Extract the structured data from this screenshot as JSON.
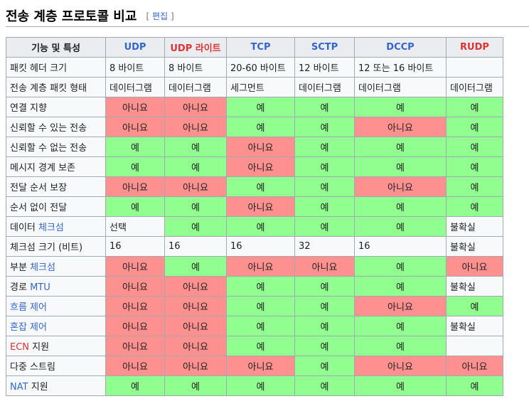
{
  "heading": "전송 계층 프로토콜 비교",
  "edit": {
    "open": "[",
    "label": "편집",
    "close": "]"
  },
  "columns": [
    {
      "label": "기능 및 특성",
      "style": "feat"
    },
    {
      "label": "UDP",
      "style": "blue"
    },
    {
      "label": "UDP 라이트",
      "style": "red"
    },
    {
      "label": "TCP",
      "style": "blue"
    },
    {
      "label": "SCTP",
      "style": "blue"
    },
    {
      "label": "DCCP",
      "style": "blue"
    },
    {
      "label": "RUDP",
      "style": "red"
    }
  ],
  "rows": [
    {
      "label": [
        {
          "t": "패킷 헤더 크기"
        }
      ],
      "cells": [
        {
          "v": "8 바이트",
          "s": "plain"
        },
        {
          "v": "8 바이트",
          "s": "plain"
        },
        {
          "v": "20-60 바이트",
          "s": "plain"
        },
        {
          "v": "12 바이트",
          "s": "plain"
        },
        {
          "v": "12 또는 16 바이트",
          "s": "plain"
        },
        {
          "v": "",
          "s": "plain"
        }
      ]
    },
    {
      "label": [
        {
          "t": "전송 계층 패킷 형태"
        }
      ],
      "cells": [
        {
          "v": "데이터그램",
          "s": "plain"
        },
        {
          "v": "데이터그램",
          "s": "plain"
        },
        {
          "v": "세그먼트",
          "s": "plain"
        },
        {
          "v": "데이터그램",
          "s": "plain"
        },
        {
          "v": "데이터그램",
          "s": "plain"
        },
        {
          "v": "데이터그램",
          "s": "plain"
        }
      ]
    },
    {
      "label": [
        {
          "t": "연결 지향"
        }
      ],
      "cells": [
        {
          "v": "아니요",
          "s": "no"
        },
        {
          "v": "아니요",
          "s": "no"
        },
        {
          "v": "예",
          "s": "yes"
        },
        {
          "v": "예",
          "s": "yes"
        },
        {
          "v": "예",
          "s": "yes"
        },
        {
          "v": "예",
          "s": "yes"
        }
      ]
    },
    {
      "label": [
        {
          "t": "신뢰할 수 있는 전송"
        }
      ],
      "cells": [
        {
          "v": "아니요",
          "s": "no"
        },
        {
          "v": "아니요",
          "s": "no"
        },
        {
          "v": "예",
          "s": "yes"
        },
        {
          "v": "예",
          "s": "yes"
        },
        {
          "v": "아니요",
          "s": "no"
        },
        {
          "v": "예",
          "s": "yes"
        }
      ]
    },
    {
      "label": [
        {
          "t": "신뢰할 수 없는 전송"
        }
      ],
      "cells": [
        {
          "v": "예",
          "s": "yes"
        },
        {
          "v": "예",
          "s": "yes"
        },
        {
          "v": "아니요",
          "s": "no"
        },
        {
          "v": "예",
          "s": "yes"
        },
        {
          "v": "예",
          "s": "yes"
        },
        {
          "v": "예",
          "s": "yes"
        }
      ]
    },
    {
      "label": [
        {
          "t": "메시지 경계 보존"
        }
      ],
      "cells": [
        {
          "v": "예",
          "s": "yes"
        },
        {
          "v": "예",
          "s": "yes"
        },
        {
          "v": "아니요",
          "s": "no"
        },
        {
          "v": "예",
          "s": "yes"
        },
        {
          "v": "예",
          "s": "yes"
        },
        {
          "v": "예",
          "s": "yes"
        }
      ]
    },
    {
      "label": [
        {
          "t": "전달 순서 보장"
        }
      ],
      "cells": [
        {
          "v": "아니요",
          "s": "no"
        },
        {
          "v": "아니요",
          "s": "no"
        },
        {
          "v": "예",
          "s": "yes"
        },
        {
          "v": "예",
          "s": "yes"
        },
        {
          "v": "아니요",
          "s": "no"
        },
        {
          "v": "예",
          "s": "yes"
        }
      ]
    },
    {
      "label": [
        {
          "t": "순서 없이 전달"
        }
      ],
      "cells": [
        {
          "v": "예",
          "s": "yes"
        },
        {
          "v": "예",
          "s": "yes"
        },
        {
          "v": "아니요",
          "s": "no"
        },
        {
          "v": "예",
          "s": "yes"
        },
        {
          "v": "예",
          "s": "yes"
        },
        {
          "v": "예",
          "s": "yes"
        }
      ]
    },
    {
      "label": [
        {
          "t": "데이터 "
        },
        {
          "t": "체크섬",
          "link": "lk"
        }
      ],
      "cells": [
        {
          "v": "선택",
          "s": "plain"
        },
        {
          "v": "예",
          "s": "yes"
        },
        {
          "v": "예",
          "s": "yes"
        },
        {
          "v": "예",
          "s": "yes"
        },
        {
          "v": "예",
          "s": "yes"
        },
        {
          "v": "불확실",
          "s": "plain"
        }
      ]
    },
    {
      "label": [
        {
          "t": "체크섬 크기 (비트)"
        }
      ],
      "cells": [
        {
          "v": "16",
          "s": "plain"
        },
        {
          "v": "16",
          "s": "plain"
        },
        {
          "v": "16",
          "s": "plain"
        },
        {
          "v": "32",
          "s": "plain"
        },
        {
          "v": "16",
          "s": "plain"
        },
        {
          "v": "불확실",
          "s": "plain"
        }
      ]
    },
    {
      "label": [
        {
          "t": "부분 "
        },
        {
          "t": "체크섬",
          "link": "lk"
        }
      ],
      "cells": [
        {
          "v": "아니요",
          "s": "no"
        },
        {
          "v": "예",
          "s": "yes"
        },
        {
          "v": "아니요",
          "s": "no"
        },
        {
          "v": "아니요",
          "s": "no"
        },
        {
          "v": "예",
          "s": "yes"
        },
        {
          "v": "아니요",
          "s": "no"
        }
      ]
    },
    {
      "label": [
        {
          "t": "경로 "
        },
        {
          "t": "MTU",
          "link": "lk"
        }
      ],
      "cells": [
        {
          "v": "아니요",
          "s": "no"
        },
        {
          "v": "아니요",
          "s": "no"
        },
        {
          "v": "예",
          "s": "yes"
        },
        {
          "v": "예",
          "s": "yes"
        },
        {
          "v": "예",
          "s": "yes"
        },
        {
          "v": "불확실",
          "s": "plain"
        }
      ]
    },
    {
      "label": [
        {
          "t": "흐름 제어",
          "link": "lk"
        }
      ],
      "cells": [
        {
          "v": "아니요",
          "s": "no"
        },
        {
          "v": "아니요",
          "s": "no"
        },
        {
          "v": "예",
          "s": "yes"
        },
        {
          "v": "예",
          "s": "yes"
        },
        {
          "v": "아니요",
          "s": "no"
        },
        {
          "v": "예",
          "s": "yes"
        }
      ]
    },
    {
      "label": [
        {
          "t": "혼잡 제어",
          "link": "lk"
        }
      ],
      "cells": [
        {
          "v": "아니요",
          "s": "no"
        },
        {
          "v": "아니요",
          "s": "no"
        },
        {
          "v": "예",
          "s": "yes"
        },
        {
          "v": "예",
          "s": "yes"
        },
        {
          "v": "예",
          "s": "yes"
        },
        {
          "v": "불확실",
          "s": "plain"
        }
      ]
    },
    {
      "label": [
        {
          "t": "ECN",
          "link": "lk-red"
        },
        {
          "t": " 지원"
        }
      ],
      "cells": [
        {
          "v": "아니요",
          "s": "no"
        },
        {
          "v": "아니요",
          "s": "no"
        },
        {
          "v": "예",
          "s": "yes"
        },
        {
          "v": "예",
          "s": "yes"
        },
        {
          "v": "예",
          "s": "yes"
        },
        {
          "v": "",
          "s": "empty"
        }
      ]
    },
    {
      "label": [
        {
          "t": "다중 스트림"
        }
      ],
      "cells": [
        {
          "v": "아니요",
          "s": "no"
        },
        {
          "v": "아니요",
          "s": "no"
        },
        {
          "v": "아니요",
          "s": "no"
        },
        {
          "v": "예",
          "s": "yes"
        },
        {
          "v": "아니요",
          "s": "no"
        },
        {
          "v": "아니요",
          "s": "no"
        }
      ]
    },
    {
      "label": [
        {
          "t": "NAT",
          "link": "lk"
        },
        {
          "t": " 지원"
        }
      ],
      "cells": [
        {
          "v": "예",
          "s": "yes"
        },
        {
          "v": "예",
          "s": "yes"
        },
        {
          "v": "예",
          "s": "yes"
        },
        {
          "v": "예",
          "s": "yes"
        },
        {
          "v": "예",
          "s": "yes"
        },
        {
          "v": "예",
          "s": "yes"
        }
      ]
    }
  ]
}
